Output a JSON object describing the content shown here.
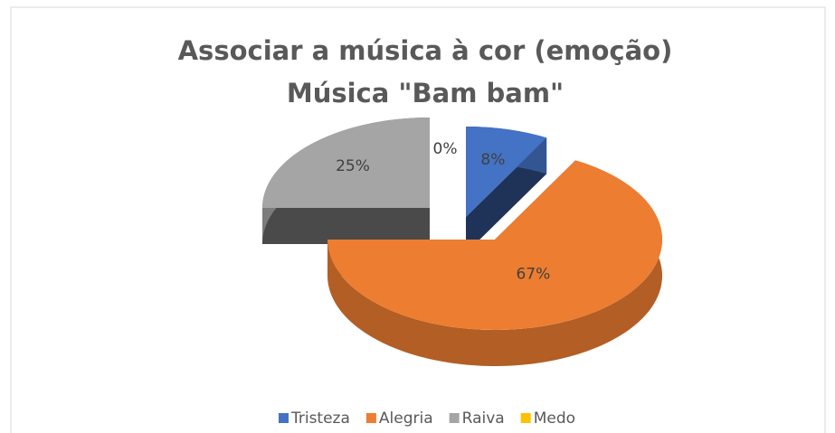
{
  "chart_data": {
    "type": "pie3d",
    "title": [
      "Associar a música à cor  (emoção)",
      "Música \"Bam bam\""
    ],
    "categories": [
      "Tristeza",
      "Alegria",
      "Raiva",
      "Medo"
    ],
    "values": [
      8,
      67,
      25,
      0
    ],
    "value_labels": [
      "8%",
      "67%",
      "25%",
      "0%"
    ],
    "colors": [
      "#4472c4",
      "#ed7d31",
      "#a5a5a5",
      "#ffc000"
    ],
    "legend": "bottom"
  }
}
